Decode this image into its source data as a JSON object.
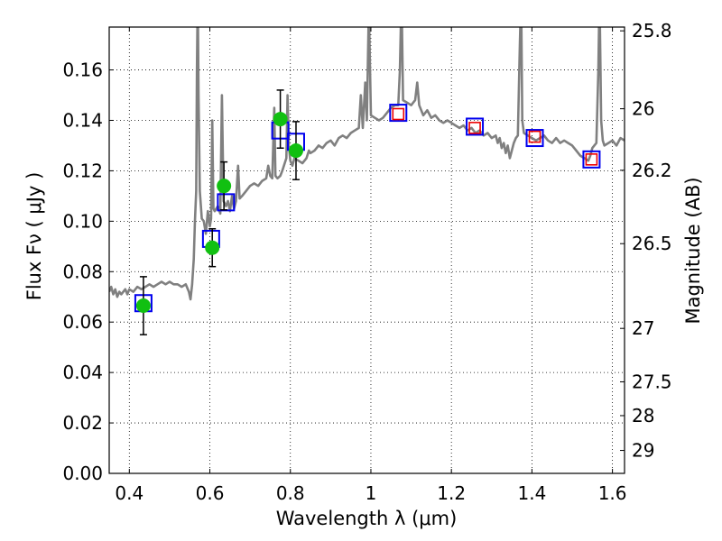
{
  "chart_data": {
    "type": "scatter",
    "xlabel": "Wavelength  λ (μm)",
    "ylabel": "Flux  Fν  ( μJy )",
    "y2label": "Magnitude (AB)",
    "xlim": [
      0.35,
      1.63
    ],
    "ylim": [
      0.0,
      0.177
    ],
    "grid": true,
    "x_ticks": [
      {
        "value": 0.4,
        "label": "0.4"
      },
      {
        "value": 0.6,
        "label": "0.6"
      },
      {
        "value": 0.8,
        "label": "0.8"
      },
      {
        "value": 1.0,
        "label": "1"
      },
      {
        "value": 1.2,
        "label": "1.2"
      },
      {
        "value": 1.4,
        "label": "1.4"
      },
      {
        "value": 1.6,
        "label": "1.6"
      }
    ],
    "y_ticks": [
      {
        "value": 0.0,
        "label": "0.00"
      },
      {
        "value": 0.02,
        "label": "0.02"
      },
      {
        "value": 0.04,
        "label": "0.04"
      },
      {
        "value": 0.06,
        "label": "0.06"
      },
      {
        "value": 0.08,
        "label": "0.08"
      },
      {
        "value": 0.1,
        "label": "0.10"
      },
      {
        "value": 0.12,
        "label": "0.12"
      },
      {
        "value": 0.14,
        "label": "0.14"
      },
      {
        "value": 0.16,
        "label": "0.16"
      }
    ],
    "y2_ticks": [
      {
        "label": "25.8",
        "flux": 0.1755
      },
      {
        "label": "26",
        "flux": 0.1446
      },
      {
        "label": "26.2",
        "flux": 0.1202
      },
      {
        "label": "26.5",
        "flux": 0.0911
      },
      {
        "label": "27",
        "flux": 0.0575
      },
      {
        "label": "27.5",
        "flux": 0.0363
      },
      {
        "label": "28",
        "flux": 0.0229
      },
      {
        "label": "29",
        "flux": 0.0091
      }
    ],
    "colors": {
      "spectrum": "#808080",
      "observed": "#11c011",
      "model_box": "#0000ee",
      "nir_box": "#ee0000",
      "errorbar": "#000000",
      "grid": "#000000"
    },
    "observed_points": [
      {
        "x": 0.435,
        "y": 0.0665,
        "err": 0.0115
      },
      {
        "x": 0.606,
        "y": 0.0895,
        "err": 0.0075
      },
      {
        "x": 0.635,
        "y": 0.114,
        "err": 0.0095
      },
      {
        "x": 0.775,
        "y": 0.1405,
        "err": 0.0115
      },
      {
        "x": 0.814,
        "y": 0.128,
        "err": 0.0115
      }
    ],
    "model_boxes": [
      {
        "x": 0.435,
        "y": 0.0675
      },
      {
        "x": 0.603,
        "y": 0.093
      },
      {
        "x": 0.64,
        "y": 0.1075
      },
      {
        "x": 0.775,
        "y": 0.136
      },
      {
        "x": 0.814,
        "y": 0.1315
      },
      {
        "x": 1.068,
        "y": 0.143
      },
      {
        "x": 1.258,
        "y": 0.1375
      },
      {
        "x": 1.407,
        "y": 0.133
      },
      {
        "x": 1.548,
        "y": 0.1245
      }
    ],
    "nir_points": [
      {
        "x": 1.068,
        "y": 0.1425
      },
      {
        "x": 1.258,
        "y": 0.137
      },
      {
        "x": 1.407,
        "y": 0.1335
      },
      {
        "x": 1.548,
        "y": 0.1245
      }
    ],
    "spectrum": [
      [
        0.35,
        0.072
      ],
      [
        0.355,
        0.074
      ],
      [
        0.36,
        0.071
      ],
      [
        0.365,
        0.073
      ],
      [
        0.37,
        0.07
      ],
      [
        0.375,
        0.072
      ],
      [
        0.38,
        0.071
      ],
      [
        0.385,
        0.072
      ],
      [
        0.39,
        0.073
      ],
      [
        0.395,
        0.071
      ],
      [
        0.4,
        0.073
      ],
      [
        0.41,
        0.072
      ],
      [
        0.42,
        0.074
      ],
      [
        0.43,
        0.073
      ],
      [
        0.44,
        0.074
      ],
      [
        0.45,
        0.075
      ],
      [
        0.46,
        0.074
      ],
      [
        0.47,
        0.075
      ],
      [
        0.48,
        0.076
      ],
      [
        0.49,
        0.075
      ],
      [
        0.5,
        0.076
      ],
      [
        0.51,
        0.075
      ],
      [
        0.52,
        0.075
      ],
      [
        0.53,
        0.074
      ],
      [
        0.54,
        0.075
      ],
      [
        0.548,
        0.072
      ],
      [
        0.552,
        0.069
      ],
      [
        0.556,
        0.075
      ],
      [
        0.56,
        0.085
      ],
      [
        0.563,
        0.1
      ],
      [
        0.566,
        0.112
      ],
      [
        0.568,
        0.16
      ],
      [
        0.57,
        0.19
      ],
      [
        0.572,
        0.15
      ],
      [
        0.575,
        0.112
      ],
      [
        0.58,
        0.101
      ],
      [
        0.585,
        0.1
      ],
      [
        0.59,
        0.095
      ],
      [
        0.595,
        0.104
      ],
      [
        0.6,
        0.098
      ],
      [
        0.603,
        0.101
      ],
      [
        0.606,
        0.14
      ],
      [
        0.609,
        0.105
      ],
      [
        0.612,
        0.104
      ],
      [
        0.62,
        0.106
      ],
      [
        0.626,
        0.103
      ],
      [
        0.63,
        0.15
      ],
      [
        0.634,
        0.108
      ],
      [
        0.64,
        0.106
      ],
      [
        0.645,
        0.108
      ],
      [
        0.65,
        0.104
      ],
      [
        0.655,
        0.11
      ],
      [
        0.66,
        0.105
      ],
      [
        0.665,
        0.108
      ],
      [
        0.67,
        0.122
      ],
      [
        0.674,
        0.109
      ],
      [
        0.68,
        0.11
      ],
      [
        0.69,
        0.112
      ],
      [
        0.7,
        0.114
      ],
      [
        0.71,
        0.115
      ],
      [
        0.72,
        0.114
      ],
      [
        0.73,
        0.116
      ],
      [
        0.74,
        0.117
      ],
      [
        0.745,
        0.122
      ],
      [
        0.75,
        0.118
      ],
      [
        0.755,
        0.117
      ],
      [
        0.76,
        0.145
      ],
      [
        0.763,
        0.118
      ],
      [
        0.768,
        0.117
      ],
      [
        0.775,
        0.118
      ],
      [
        0.78,
        0.12
      ],
      [
        0.79,
        0.125
      ],
      [
        0.793,
        0.15
      ],
      [
        0.796,
        0.13
      ],
      [
        0.8,
        0.124
      ],
      [
        0.805,
        0.122
      ],
      [
        0.81,
        0.125
      ],
      [
        0.82,
        0.124
      ],
      [
        0.83,
        0.123
      ],
      [
        0.84,
        0.125
      ],
      [
        0.846,
        0.128
      ],
      [
        0.85,
        0.127
      ],
      [
        0.86,
        0.128
      ],
      [
        0.87,
        0.13
      ],
      [
        0.88,
        0.129
      ],
      [
        0.89,
        0.131
      ],
      [
        0.9,
        0.132
      ],
      [
        0.91,
        0.13
      ],
      [
        0.92,
        0.133
      ],
      [
        0.93,
        0.134
      ],
      [
        0.94,
        0.133
      ],
      [
        0.95,
        0.135
      ],
      [
        0.96,
        0.136
      ],
      [
        0.97,
        0.137
      ],
      [
        0.975,
        0.15
      ],
      [
        0.98,
        0.137
      ],
      [
        0.986,
        0.155
      ],
      [
        0.99,
        0.14
      ],
      [
        0.995,
        0.185
      ],
      [
        1.0,
        0.142
      ],
      [
        1.01,
        0.141
      ],
      [
        1.02,
        0.14
      ],
      [
        1.03,
        0.141
      ],
      [
        1.04,
        0.143
      ],
      [
        1.05,
        0.145
      ],
      [
        1.06,
        0.146
      ],
      [
        1.068,
        0.146
      ],
      [
        1.072,
        0.16
      ],
      [
        1.076,
        0.19
      ],
      [
        1.08,
        0.148
      ],
      [
        1.09,
        0.147
      ],
      [
        1.1,
        0.146
      ],
      [
        1.11,
        0.148
      ],
      [
        1.115,
        0.155
      ],
      [
        1.12,
        0.146
      ],
      [
        1.13,
        0.142
      ],
      [
        1.14,
        0.144
      ],
      [
        1.15,
        0.141
      ],
      [
        1.16,
        0.142
      ],
      [
        1.17,
        0.14
      ],
      [
        1.18,
        0.139
      ],
      [
        1.19,
        0.14
      ],
      [
        1.2,
        0.139
      ],
      [
        1.21,
        0.138
      ],
      [
        1.22,
        0.137
      ],
      [
        1.23,
        0.138
      ],
      [
        1.24,
        0.136
      ],
      [
        1.25,
        0.137
      ],
      [
        1.26,
        0.135
      ],
      [
        1.27,
        0.136
      ],
      [
        1.28,
        0.134
      ],
      [
        1.29,
        0.135
      ],
      [
        1.3,
        0.133
      ],
      [
        1.31,
        0.134
      ],
      [
        1.315,
        0.131
      ],
      [
        1.32,
        0.133
      ],
      [
        1.325,
        0.129
      ],
      [
        1.33,
        0.131
      ],
      [
        1.335,
        0.127
      ],
      [
        1.34,
        0.13
      ],
      [
        1.345,
        0.125
      ],
      [
        1.35,
        0.128
      ],
      [
        1.355,
        0.131
      ],
      [
        1.36,
        0.133
      ],
      [
        1.365,
        0.134
      ],
      [
        1.37,
        0.17
      ],
      [
        1.373,
        0.19
      ],
      [
        1.376,
        0.14
      ],
      [
        1.38,
        0.135
      ],
      [
        1.39,
        0.134
      ],
      [
        1.4,
        0.133
      ],
      [
        1.41,
        0.132
      ],
      [
        1.42,
        0.133
      ],
      [
        1.43,
        0.134
      ],
      [
        1.44,
        0.132
      ],
      [
        1.45,
        0.131
      ],
      [
        1.46,
        0.133
      ],
      [
        1.47,
        0.131
      ],
      [
        1.48,
        0.132
      ],
      [
        1.49,
        0.131
      ],
      [
        1.5,
        0.13
      ],
      [
        1.51,
        0.128
      ],
      [
        1.52,
        0.126
      ],
      [
        1.53,
        0.125
      ],
      [
        1.54,
        0.124
      ],
      [
        1.545,
        0.126
      ],
      [
        1.55,
        0.129
      ],
      [
        1.555,
        0.13
      ],
      [
        1.56,
        0.131
      ],
      [
        1.565,
        0.16
      ],
      [
        1.568,
        0.19
      ],
      [
        1.572,
        0.14
      ],
      [
        1.576,
        0.132
      ],
      [
        1.58,
        0.13
      ],
      [
        1.59,
        0.131
      ],
      [
        1.6,
        0.132
      ],
      [
        1.61,
        0.13
      ],
      [
        1.62,
        0.133
      ],
      [
        1.63,
        0.132
      ]
    ]
  }
}
